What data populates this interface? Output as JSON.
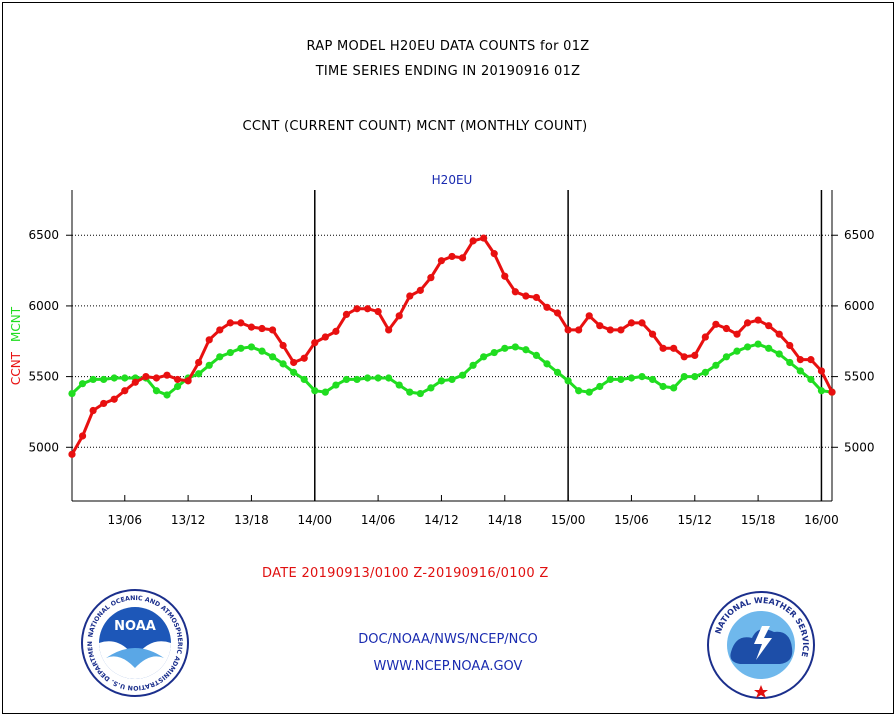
{
  "titles": {
    "line1": "RAP MODEL H20EU DATA COUNTS for 01Z",
    "line2": "TIME SERIES ENDING IN 20190916 01Z",
    "line3": "CCNT (CURRENT COUNT) MCNT (MONTHLY COUNT)"
  },
  "date_range": "DATE 20190913/0100 Z-20190916/0100 Z",
  "footer": {
    "line1": "DOC/NOAA/NWS/NCEP/NCO",
    "line2": "WWW.NCEP.NOAA.GOV"
  },
  "logos": {
    "left": {
      "name": "noaa-logo",
      "text": "NOAA",
      "ring_text": "NATIONAL OCEANIC AND ATMOSPHERIC ADMINISTRATION U.S. DEPARTMENT OF COMMERCE"
    },
    "right": {
      "name": "nws-logo",
      "ring_text": "NATIONAL WEATHER SERVICE"
    }
  },
  "chart_data": {
    "type": "line",
    "title": "H20EU",
    "ylabel_left": [
      "CCNT",
      "MCNT"
    ],
    "ylim": [
      4620,
      6820
    ],
    "yticks": [
      5000,
      5500,
      6000,
      6500
    ],
    "yticklabels": [
      "5000",
      "5500",
      "6000",
      "6500"
    ],
    "xlim_hours": [
      0,
      72
    ],
    "xticks_hours": [
      5,
      11,
      17,
      23,
      29,
      35,
      41,
      47,
      53,
      59,
      65,
      71
    ],
    "xticklabels": [
      "13/06",
      "13/12",
      "13/18",
      "14/00",
      "14/06",
      "14/12",
      "14/18",
      "15/00",
      "15/06",
      "15/12",
      "15/18",
      "16/00"
    ],
    "vlines_hours": [
      23,
      47,
      71
    ],
    "grid": "horizontal dotted",
    "colors": {
      "ccnt": "#e81010",
      "mcnt": "#20dd20",
      "title": "#1a2bb0"
    },
    "series": [
      {
        "name": "CCNT",
        "color": "#e81010",
        "values": [
          4950,
          5080,
          5260,
          5310,
          5340,
          5400,
          5460,
          5500,
          5490,
          5510,
          5480,
          5470,
          5600,
          5760,
          5830,
          5880,
          5880,
          5850,
          5840,
          5830,
          5720,
          5600,
          5630,
          5740,
          5780,
          5820,
          5940,
          5980,
          5980,
          5960,
          5830,
          5930,
          6070,
          6110,
          6200,
          6320,
          6350,
          6340,
          6460,
          6480,
          6370,
          6210,
          6100,
          6070,
          6060,
          5990,
          5950,
          5830,
          5830,
          5930,
          5860,
          5830,
          5830,
          5880,
          5880,
          5800,
          5700,
          5700,
          5640,
          5650,
          5780,
          5870,
          5840,
          5800,
          5880,
          5900,
          5860,
          5800,
          5720,
          5620,
          5620,
          5540,
          5390
        ]
      },
      {
        "name": "MCNT",
        "color": "#20dd20",
        "values": [
          5380,
          5450,
          5480,
          5480,
          5490,
          5490,
          5490,
          5490,
          5400,
          5370,
          5430,
          5490,
          5520,
          5580,
          5640,
          5670,
          5700,
          5710,
          5680,
          5640,
          5590,
          5530,
          5480,
          5400,
          5390,
          5440,
          5480,
          5480,
          5490,
          5490,
          5490,
          5440,
          5390,
          5380,
          5420,
          5470,
          5480,
          5510,
          5580,
          5640,
          5670,
          5700,
          5710,
          5690,
          5650,
          5590,
          5530,
          5470,
          5400,
          5390,
          5430,
          5480,
          5480,
          5490,
          5500,
          5480,
          5430,
          5420,
          5500,
          5500,
          5530,
          5580,
          5640,
          5680,
          5710,
          5730,
          5700,
          5660,
          5600,
          5540,
          5480,
          5400,
          5390
        ]
      }
    ]
  }
}
